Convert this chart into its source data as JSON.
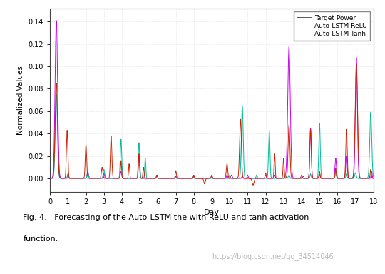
{
  "title": "",
  "xlabel": "Day",
  "ylabel": "Normalized Values",
  "xlim": [
    0,
    18
  ],
  "ylim": [
    -0.012,
    0.152
  ],
  "yticks": [
    0.0,
    0.02,
    0.04,
    0.06,
    0.08,
    0.1,
    0.12,
    0.14
  ],
  "xticks": [
    0,
    1,
    2,
    3,
    4,
    5,
    6,
    7,
    8,
    9,
    10,
    11,
    12,
    13,
    14,
    15,
    16,
    17,
    18
  ],
  "legend_labels": [
    "Target Power",
    "Auto-LSTM ReLU",
    "Auto-LSTM Tanh"
  ],
  "legend_colors": [
    "#cc00ee",
    "#00bb99",
    "#cc2200"
  ],
  "grid_color": "#cccccc",
  "caption_line1": "Fig. 4.   Forecasting of the Auto-LSTM the with ReLU and tanh activation",
  "caption_line2": "function.",
  "watermark": "https://blog.csdn.net/qq_34514046",
  "background_color": "#ffffff",
  "n_points": 1800,
  "fig_width": 5.4,
  "fig_height": 3.84,
  "dpi": 100
}
